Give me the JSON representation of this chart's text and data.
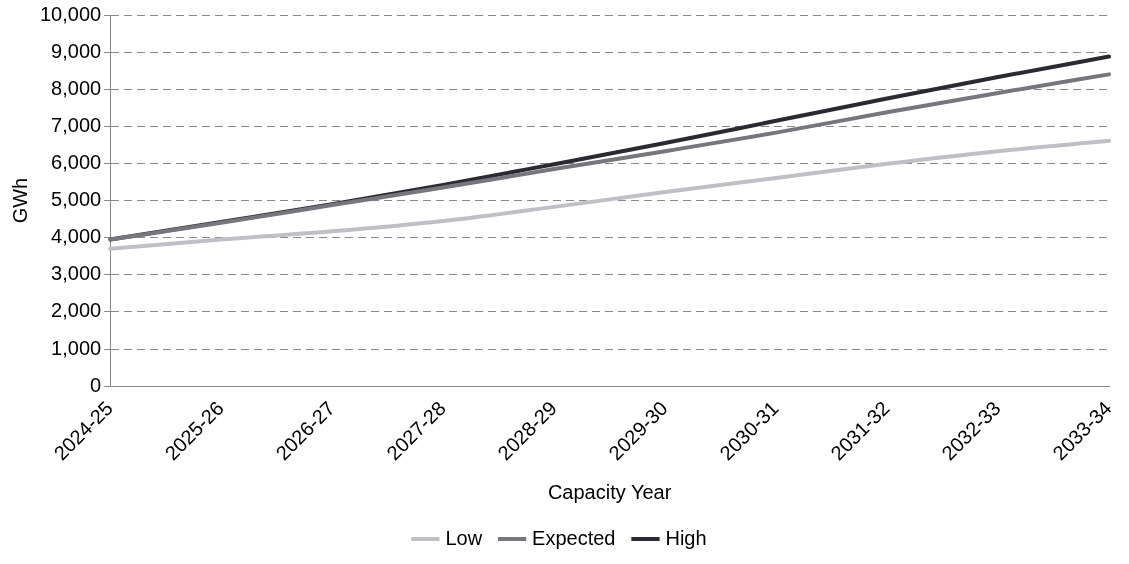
{
  "chart_data": {
    "type": "line",
    "xlabel": "Capacity Year",
    "ylabel": "GWh",
    "categories": [
      "2024-25",
      "2025-26",
      "2026-27",
      "2027-28",
      "2028-29",
      "2029-30",
      "2030-31",
      "2031-32",
      "2032-33",
      "2033-34"
    ],
    "series": [
      {
        "name": "Low",
        "color": "#c0bfc5",
        "values": [
          3700,
          3950,
          4170,
          4450,
          4830,
          5230,
          5610,
          5990,
          6330,
          6610
        ]
      },
      {
        "name": "Expected",
        "color": "#77767e",
        "values": [
          3950,
          4400,
          4880,
          5350,
          5850,
          6330,
          6830,
          7380,
          7900,
          8400
        ]
      },
      {
        "name": "High",
        "color": "#2b2a33",
        "values": [
          3950,
          4420,
          4900,
          5420,
          5980,
          6550,
          7150,
          7750,
          8330,
          8880
        ]
      }
    ],
    "ylim": [
      0,
      10000
    ],
    "yticks": [
      0,
      {
        "value": 1000,
        "label": "1,000"
      },
      {
        "value": 2000,
        "label": "2,000"
      },
      {
        "value": 3000,
        "label": "3,000"
      },
      {
        "value": 4000,
        "label": "4,000"
      },
      {
        "value": 5000,
        "label": "5,000"
      },
      {
        "value": 6000,
        "label": "6,000"
      },
      {
        "value": 7000,
        "label": "7,000"
      },
      {
        "value": 8000,
        "label": "8,000"
      },
      {
        "value": 9000,
        "label": "9,000"
      },
      {
        "value": 10000,
        "label": "10,000"
      }
    ],
    "grid": "y",
    "legend": "bottom",
    "marker": "none",
    "line_style": "solid"
  }
}
